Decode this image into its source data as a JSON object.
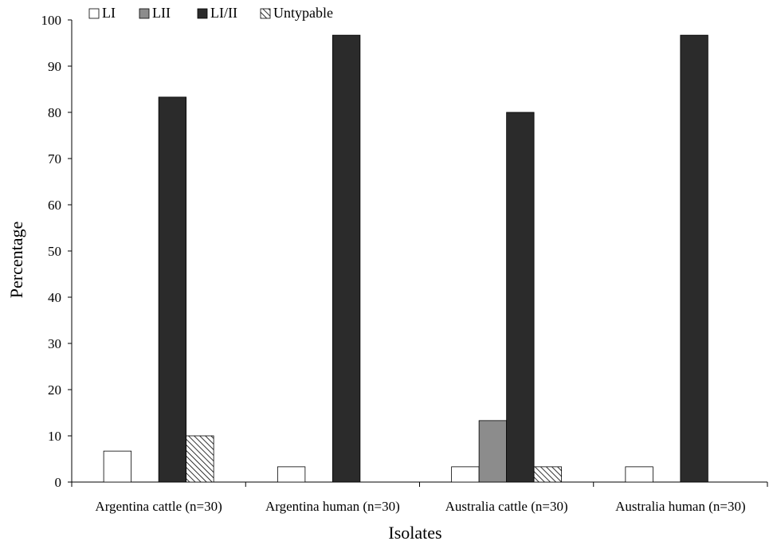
{
  "chart_data": {
    "type": "bar",
    "title": "",
    "xlabel": "Isolates",
    "ylabel": "Percentage",
    "ylim": [
      0,
      100
    ],
    "yticks": [
      "0",
      "10",
      "20",
      "30",
      "40",
      "50",
      "60",
      "70",
      "80",
      "90",
      "100"
    ],
    "grid": false,
    "legend_position": "top-left",
    "categories": [
      "Argentina cattle (n=30)",
      "Argentina human (n=30)",
      "Australia cattle (n=30)",
      "Australia human (n=30)"
    ],
    "series": [
      {
        "name": "LI",
        "values": [
          6.7,
          3.3,
          3.3,
          3.3
        ],
        "color": "#ffffff",
        "pattern": "solid"
      },
      {
        "name": "LII",
        "values": [
          0,
          0,
          13.3,
          0
        ],
        "color": "#8c8c8c",
        "pattern": "solid"
      },
      {
        "name": "LI/II",
        "values": [
          83.3,
          96.7,
          80.0,
          96.7
        ],
        "color": "#2b2b2b",
        "pattern": "solid"
      },
      {
        "name": "Untypable",
        "values": [
          10.0,
          0,
          3.3,
          0
        ],
        "color": "#ffffff",
        "pattern": "hatched"
      }
    ]
  }
}
